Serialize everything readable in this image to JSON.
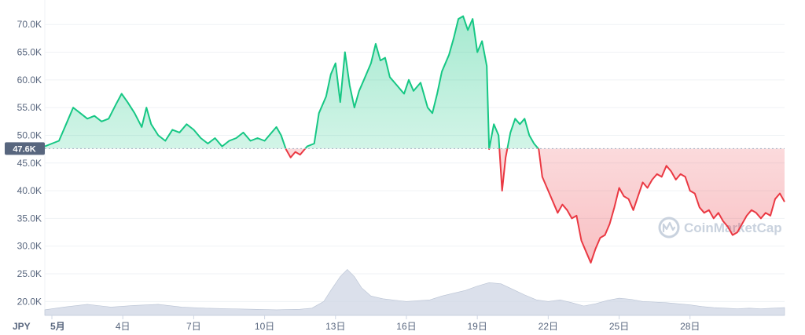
{
  "chart_data": {
    "type": "area",
    "currency_label": "JPY",
    "current_value_label": "47.6K",
    "baseline_value": 47600,
    "watermark": "CoinMarketCap",
    "ylim": [
      17500,
      73000
    ],
    "y_ticks": [
      {
        "label": "70.0K",
        "value": 70000
      },
      {
        "label": "65.0K",
        "value": 65000
      },
      {
        "label": "60.0K",
        "value": 60000
      },
      {
        "label": "55.0K",
        "value": 55000
      },
      {
        "label": "50.0K",
        "value": 50000
      },
      {
        "label": "45.0K",
        "value": 45000
      },
      {
        "label": "40.0K",
        "value": 40000
      },
      {
        "label": "35.0K",
        "value": 35000
      },
      {
        "label": "30.0K",
        "value": 30000
      },
      {
        "label": "25.0K",
        "value": 25000
      },
      {
        "label": "20.0K",
        "value": 20000
      }
    ],
    "x_ticks": [
      {
        "label": "5月",
        "day": 1
      },
      {
        "label": "4日",
        "day": 4
      },
      {
        "label": "7日",
        "day": 7
      },
      {
        "label": "10日",
        "day": 10
      },
      {
        "label": "13日",
        "day": 13
      },
      {
        "label": "16日",
        "day": 16
      },
      {
        "label": "19日",
        "day": 19
      },
      {
        "label": "22日",
        "day": 22
      },
      {
        "label": "25日",
        "day": 25
      },
      {
        "label": "28日",
        "day": 28
      }
    ],
    "xlim_days": [
      0.7,
      32.0
    ],
    "colors": {
      "up": "#16c784",
      "down": "#ea3943",
      "volume": "#cfd6e4",
      "grid": "#eff2f5",
      "axis_text": "#58667e",
      "label_bg": "#58667e"
    },
    "price_series": [
      [
        0.7,
        48000
      ],
      [
        1.0,
        48500
      ],
      [
        1.3,
        49000
      ],
      [
        1.6,
        52000
      ],
      [
        1.9,
        55000
      ],
      [
        2.2,
        54000
      ],
      [
        2.5,
        53000
      ],
      [
        2.8,
        53500
      ],
      [
        3.1,
        52500
      ],
      [
        3.4,
        53000
      ],
      [
        3.7,
        55500
      ],
      [
        3.95,
        57500
      ],
      [
        4.2,
        56000
      ],
      [
        4.5,
        54000
      ],
      [
        4.8,
        51500
      ],
      [
        5.0,
        55000
      ],
      [
        5.2,
        52000
      ],
      [
        5.5,
        50000
      ],
      [
        5.8,
        49000
      ],
      [
        6.1,
        51000
      ],
      [
        6.4,
        50500
      ],
      [
        6.7,
        52000
      ],
      [
        7.0,
        51000
      ],
      [
        7.3,
        49500
      ],
      [
        7.6,
        48500
      ],
      [
        7.9,
        49500
      ],
      [
        8.2,
        48000
      ],
      [
        8.5,
        49000
      ],
      [
        8.8,
        49500
      ],
      [
        9.1,
        50500
      ],
      [
        9.4,
        49000
      ],
      [
        9.7,
        49500
      ],
      [
        10.0,
        49000
      ],
      [
        10.3,
        50500
      ],
      [
        10.5,
        51500
      ],
      [
        10.7,
        50000
      ],
      [
        10.9,
        47500
      ],
      [
        11.1,
        46000
      ],
      [
        11.3,
        47000
      ],
      [
        11.5,
        46500
      ],
      [
        11.8,
        48000
      ],
      [
        12.1,
        48500
      ],
      [
        12.3,
        54000
      ],
      [
        12.6,
        57000
      ],
      [
        12.8,
        61000
      ],
      [
        13.0,
        63000
      ],
      [
        13.2,
        56000
      ],
      [
        13.4,
        65000
      ],
      [
        13.6,
        59000
      ],
      [
        13.8,
        55000
      ],
      [
        14.0,
        58000
      ],
      [
        14.2,
        60000
      ],
      [
        14.5,
        63000
      ],
      [
        14.7,
        66500
      ],
      [
        14.9,
        63500
      ],
      [
        15.1,
        64000
      ],
      [
        15.3,
        60500
      ],
      [
        15.6,
        59000
      ],
      [
        15.9,
        57500
      ],
      [
        16.1,
        60000
      ],
      [
        16.3,
        58000
      ],
      [
        16.6,
        59500
      ],
      [
        16.9,
        55000
      ],
      [
        17.1,
        54000
      ],
      [
        17.3,
        57500
      ],
      [
        17.5,
        61500
      ],
      [
        17.8,
        64500
      ],
      [
        18.0,
        67500
      ],
      [
        18.2,
        71000
      ],
      [
        18.4,
        71500
      ],
      [
        18.6,
        69000
      ],
      [
        18.8,
        71000
      ],
      [
        19.0,
        65000
      ],
      [
        19.2,
        67000
      ],
      [
        19.4,
        62500
      ],
      [
        19.5,
        47500
      ],
      [
        19.7,
        52000
      ],
      [
        19.9,
        50000
      ],
      [
        20.05,
        40000
      ],
      [
        20.2,
        46000
      ],
      [
        20.4,
        50500
      ],
      [
        20.6,
        53000
      ],
      [
        20.8,
        52000
      ],
      [
        21.0,
        53000
      ],
      [
        21.2,
        50000
      ],
      [
        21.4,
        48500
      ],
      [
        21.6,
        47500
      ],
      [
        21.75,
        42500
      ],
      [
        22.0,
        40000
      ],
      [
        22.2,
        38000
      ],
      [
        22.4,
        36000
      ],
      [
        22.6,
        37500
      ],
      [
        22.8,
        36500
      ],
      [
        23.0,
        35000
      ],
      [
        23.2,
        35500
      ],
      [
        23.4,
        31000
      ],
      [
        23.6,
        29000
      ],
      [
        23.8,
        27000
      ],
      [
        24.0,
        29500
      ],
      [
        24.2,
        31500
      ],
      [
        24.4,
        32000
      ],
      [
        24.6,
        34000
      ],
      [
        24.8,
        37000
      ],
      [
        25.0,
        40500
      ],
      [
        25.2,
        39000
      ],
      [
        25.4,
        38500
      ],
      [
        25.6,
        36500
      ],
      [
        25.8,
        39000
      ],
      [
        26.0,
        41500
      ],
      [
        26.2,
        40500
      ],
      [
        26.4,
        42000
      ],
      [
        26.6,
        43000
      ],
      [
        26.8,
        42500
      ],
      [
        27.0,
        44500
      ],
      [
        27.2,
        43500
      ],
      [
        27.4,
        42000
      ],
      [
        27.6,
        43000
      ],
      [
        27.8,
        42500
      ],
      [
        28.0,
        40000
      ],
      [
        28.2,
        39500
      ],
      [
        28.4,
        37000
      ],
      [
        28.6,
        36000
      ],
      [
        28.8,
        36500
      ],
      [
        29.0,
        35000
      ],
      [
        29.2,
        36000
      ],
      [
        29.4,
        34500
      ],
      [
        29.6,
        33500
      ],
      [
        29.8,
        32000
      ],
      [
        30.0,
        32500
      ],
      [
        30.2,
        34000
      ],
      [
        30.4,
        35500
      ],
      [
        30.6,
        36500
      ],
      [
        30.8,
        36000
      ],
      [
        31.0,
        35000
      ],
      [
        31.2,
        36000
      ],
      [
        31.4,
        35500
      ],
      [
        31.6,
        38500
      ],
      [
        31.8,
        39500
      ],
      [
        32.0,
        38000
      ]
    ],
    "volume_series": [
      [
        0.7,
        18500
      ],
      [
        1.5,
        19000
      ],
      [
        2.5,
        19500
      ],
      [
        3.5,
        19000
      ],
      [
        4.5,
        19300
      ],
      [
        5.5,
        19500
      ],
      [
        6.5,
        19000
      ],
      [
        7.5,
        18800
      ],
      [
        8.5,
        18700
      ],
      [
        9.5,
        18600
      ],
      [
        10.5,
        18500
      ],
      [
        11.5,
        18600
      ],
      [
        12.0,
        18800
      ],
      [
        12.5,
        20000
      ],
      [
        12.8,
        22000
      ],
      [
        13.2,
        24500
      ],
      [
        13.5,
        25800
      ],
      [
        13.8,
        24500
      ],
      [
        14.1,
        22500
      ],
      [
        14.5,
        21000
      ],
      [
        15.0,
        20500
      ],
      [
        16.0,
        20000
      ],
      [
        17.0,
        20300
      ],
      [
        17.5,
        21000
      ],
      [
        18.0,
        21500
      ],
      [
        18.5,
        22000
      ],
      [
        19.0,
        22800
      ],
      [
        19.5,
        23400
      ],
      [
        20.0,
        23200
      ],
      [
        20.5,
        22200
      ],
      [
        21.0,
        21200
      ],
      [
        21.5,
        20300
      ],
      [
        22.0,
        20000
      ],
      [
        22.5,
        20300
      ],
      [
        23.0,
        19800
      ],
      [
        23.5,
        19200
      ],
      [
        24.0,
        19600
      ],
      [
        24.5,
        20200
      ],
      [
        25.0,
        20600
      ],
      [
        25.5,
        20400
      ],
      [
        26.0,
        20000
      ],
      [
        26.5,
        19900
      ],
      [
        27.0,
        19800
      ],
      [
        27.5,
        19600
      ],
      [
        28.0,
        19400
      ],
      [
        28.5,
        19100
      ],
      [
        29.0,
        18900
      ],
      [
        29.5,
        18800
      ],
      [
        30.0,
        18700
      ],
      [
        30.5,
        18800
      ],
      [
        31.0,
        18700
      ],
      [
        31.5,
        18800
      ],
      [
        32.0,
        18900
      ]
    ]
  }
}
